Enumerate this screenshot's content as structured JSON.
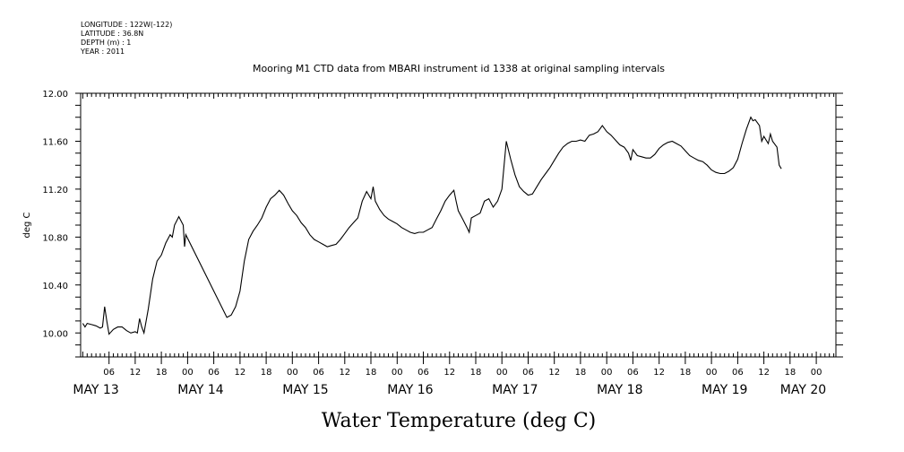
{
  "meta": {
    "longitude": "LONGITUDE : 122W(-122)",
    "latitude": "LATITUDE : 36.8N",
    "depth": "DEPTH (m) : 1",
    "year": "YEAR : 2011"
  },
  "chart_data": {
    "type": "line",
    "title": "Mooring M1 CTD data from MBARI instrument id 1338 at original sampling intervals",
    "xlabel": "Water Temperature (deg C)",
    "ylabel": "deg C",
    "ylim": [
      9.8,
      12.0
    ],
    "y_ticks": [
      {
        "value": 10.0,
        "label": "10.00"
      },
      {
        "value": 10.4,
        "label": "10.40"
      },
      {
        "value": 10.8,
        "label": "10.80"
      },
      {
        "value": 11.2,
        "label": "11.20"
      },
      {
        "value": 11.6,
        "label": "11.60"
      },
      {
        "value": 12.0,
        "label": "12.00"
      }
    ],
    "x_unit": "hours since 2011-05-13 00:00",
    "xlim": [
      -0.5,
      172.5
    ],
    "hour_ticks": [
      {
        "h": 6,
        "label": "06"
      },
      {
        "h": 12,
        "label": "12"
      },
      {
        "h": 18,
        "label": "18"
      },
      {
        "h": 24,
        "label": "00"
      },
      {
        "h": 30,
        "label": "06"
      },
      {
        "h": 36,
        "label": "12"
      },
      {
        "h": 42,
        "label": "18"
      },
      {
        "h": 48,
        "label": "00"
      },
      {
        "h": 54,
        "label": "06"
      },
      {
        "h": 60,
        "label": "12"
      },
      {
        "h": 66,
        "label": "18"
      },
      {
        "h": 72,
        "label": "00"
      },
      {
        "h": 78,
        "label": "06"
      },
      {
        "h": 84,
        "label": "12"
      },
      {
        "h": 90,
        "label": "18"
      },
      {
        "h": 96,
        "label": "00"
      },
      {
        "h": 102,
        "label": "06"
      },
      {
        "h": 108,
        "label": "12"
      },
      {
        "h": 114,
        "label": "18"
      },
      {
        "h": 120,
        "label": "00"
      },
      {
        "h": 126,
        "label": "06"
      },
      {
        "h": 132,
        "label": "12"
      },
      {
        "h": 138,
        "label": "18"
      },
      {
        "h": 144,
        "label": "00"
      },
      {
        "h": 150,
        "label": "06"
      },
      {
        "h": 156,
        "label": "12"
      },
      {
        "h": 162,
        "label": "18"
      },
      {
        "h": 168,
        "label": "00"
      }
    ],
    "day_labels": [
      {
        "h": 3,
        "label": "MAY 13"
      },
      {
        "h": 27,
        "label": "MAY 14"
      },
      {
        "h": 51,
        "label": "MAY 15"
      },
      {
        "h": 75,
        "label": "MAY 16"
      },
      {
        "h": 99,
        "label": "MAY 17"
      },
      {
        "h": 123,
        "label": "MAY 18"
      },
      {
        "h": 147,
        "label": "MAY 19"
      },
      {
        "h": 165,
        "label": "MAY 20"
      }
    ],
    "series": [
      {
        "points": [
          [
            0.0,
            10.08
          ],
          [
            0.5,
            10.05
          ],
          [
            1.0,
            10.08
          ],
          [
            2.0,
            10.07
          ],
          [
            3.0,
            10.06
          ],
          [
            4.0,
            10.04
          ],
          [
            4.5,
            10.05
          ],
          [
            5.0,
            10.22
          ],
          [
            5.5,
            10.1
          ],
          [
            6.0,
            9.99
          ],
          [
            7.0,
            10.03
          ],
          [
            8.0,
            10.05
          ],
          [
            9.0,
            10.05
          ],
          [
            10.0,
            10.02
          ],
          [
            11.0,
            10.0
          ],
          [
            12.0,
            10.01
          ],
          [
            12.5,
            10.0
          ],
          [
            13.0,
            10.12
          ],
          [
            13.5,
            10.05
          ],
          [
            14.0,
            10.0
          ],
          [
            15.0,
            10.2
          ],
          [
            16.0,
            10.45
          ],
          [
            17.0,
            10.6
          ],
          [
            18.0,
            10.65
          ],
          [
            19.0,
            10.75
          ],
          [
            20.0,
            10.82
          ],
          [
            20.5,
            10.8
          ],
          [
            21.0,
            10.9
          ],
          [
            22.0,
            10.97
          ],
          [
            23.0,
            10.9
          ],
          [
            23.3,
            10.72
          ],
          [
            23.6,
            10.82
          ],
          [
            33.0,
            10.13
          ],
          [
            34.0,
            10.15
          ],
          [
            35.0,
            10.22
          ],
          [
            36.0,
            10.35
          ],
          [
            37.0,
            10.6
          ],
          [
            38.0,
            10.78
          ],
          [
            39.0,
            10.85
          ],
          [
            40.0,
            10.9
          ],
          [
            41.0,
            10.96
          ],
          [
            42.0,
            11.05
          ],
          [
            43.0,
            11.12
          ],
          [
            44.0,
            11.15
          ],
          [
            45.0,
            11.19
          ],
          [
            46.0,
            11.15
          ],
          [
            47.0,
            11.08
          ],
          [
            48.0,
            11.02
          ],
          [
            49.0,
            10.98
          ],
          [
            50.0,
            10.92
          ],
          [
            51.0,
            10.88
          ],
          [
            52.0,
            10.82
          ],
          [
            53.0,
            10.78
          ],
          [
            54.0,
            10.76
          ],
          [
            55.0,
            10.74
          ],
          [
            56.0,
            10.72
          ],
          [
            57.0,
            10.73
          ],
          [
            58.0,
            10.74
          ],
          [
            59.0,
            10.78
          ],
          [
            60.0,
            10.83
          ],
          [
            61.0,
            10.88
          ],
          [
            62.0,
            10.92
          ],
          [
            63.0,
            10.96
          ],
          [
            64.0,
            11.1
          ],
          [
            65.0,
            11.18
          ],
          [
            66.0,
            11.12
          ],
          [
            66.5,
            11.22
          ],
          [
            67.0,
            11.1
          ],
          [
            68.0,
            11.03
          ],
          [
            69.0,
            10.98
          ],
          [
            70.0,
            10.95
          ],
          [
            71.0,
            10.93
          ],
          [
            72.0,
            10.91
          ],
          [
            73.0,
            10.88
          ],
          [
            74.0,
            10.86
          ],
          [
            75.0,
            10.84
          ],
          [
            76.0,
            10.83
          ],
          [
            77.0,
            10.84
          ],
          [
            78.0,
            10.84
          ],
          [
            79.0,
            10.86
          ],
          [
            80.0,
            10.88
          ],
          [
            81.0,
            10.95
          ],
          [
            82.0,
            11.02
          ],
          [
            83.0,
            11.1
          ],
          [
            84.0,
            11.15
          ],
          [
            85.0,
            11.19
          ],
          [
            85.5,
            11.1
          ],
          [
            86.0,
            11.02
          ],
          [
            87.0,
            10.95
          ],
          [
            88.0,
            10.88
          ],
          [
            88.5,
            10.84
          ],
          [
            89.0,
            10.96
          ],
          [
            90.0,
            10.98
          ],
          [
            91.0,
            11.0
          ],
          [
            92.0,
            11.1
          ],
          [
            93.0,
            11.12
          ],
          [
            94.0,
            11.05
          ],
          [
            95.0,
            11.1
          ],
          [
            96.0,
            11.2
          ],
          [
            97.0,
            11.6
          ],
          [
            98.0,
            11.45
          ],
          [
            99.0,
            11.32
          ],
          [
            100.0,
            11.22
          ],
          [
            101.0,
            11.18
          ],
          [
            102.0,
            11.15
          ],
          [
            103.0,
            11.16
          ],
          [
            104.0,
            11.22
          ],
          [
            105.0,
            11.28
          ],
          [
            106.0,
            11.33
          ],
          [
            107.0,
            11.38
          ],
          [
            108.0,
            11.44
          ],
          [
            109.0,
            11.5
          ],
          [
            110.0,
            11.55
          ],
          [
            111.0,
            11.58
          ],
          [
            112.0,
            11.6
          ],
          [
            113.0,
            11.6
          ],
          [
            114.0,
            11.61
          ],
          [
            115.0,
            11.6
          ],
          [
            116.0,
            11.65
          ],
          [
            117.0,
            11.66
          ],
          [
            118.0,
            11.68
          ],
          [
            119.0,
            11.73
          ],
          [
            120.0,
            11.68
          ],
          [
            121.0,
            11.65
          ],
          [
            122.0,
            11.61
          ],
          [
            123.0,
            11.57
          ],
          [
            124.0,
            11.55
          ],
          [
            125.0,
            11.5
          ],
          [
            125.5,
            11.44
          ],
          [
            126.0,
            11.53
          ],
          [
            127.0,
            11.48
          ],
          [
            128.0,
            11.47
          ],
          [
            129.0,
            11.46
          ],
          [
            130.0,
            11.46
          ],
          [
            131.0,
            11.49
          ],
          [
            132.0,
            11.54
          ],
          [
            133.0,
            11.57
          ],
          [
            134.0,
            11.59
          ],
          [
            135.0,
            11.6
          ],
          [
            136.0,
            11.58
          ],
          [
            137.0,
            11.56
          ],
          [
            138.0,
            11.52
          ],
          [
            139.0,
            11.48
          ],
          [
            140.0,
            11.46
          ],
          [
            141.0,
            11.44
          ],
          [
            142.0,
            11.43
          ],
          [
            143.0,
            11.4
          ],
          [
            144.0,
            11.36
          ],
          [
            145.0,
            11.34
          ],
          [
            146.0,
            11.33
          ],
          [
            147.0,
            11.33
          ],
          [
            148.0,
            11.35
          ],
          [
            149.0,
            11.38
          ],
          [
            150.0,
            11.45
          ],
          [
            151.0,
            11.58
          ],
          [
            152.0,
            11.7
          ],
          [
            153.0,
            11.8
          ],
          [
            153.5,
            11.77
          ],
          [
            154.0,
            11.78
          ],
          [
            155.0,
            11.73
          ],
          [
            155.5,
            11.6
          ],
          [
            156.0,
            11.64
          ],
          [
            157.0,
            11.58
          ],
          [
            157.5,
            11.66
          ],
          [
            158.0,
            11.6
          ],
          [
            159.0,
            11.55
          ],
          [
            159.5,
            11.4
          ],
          [
            160.0,
            11.37
          ]
        ]
      }
    ]
  }
}
